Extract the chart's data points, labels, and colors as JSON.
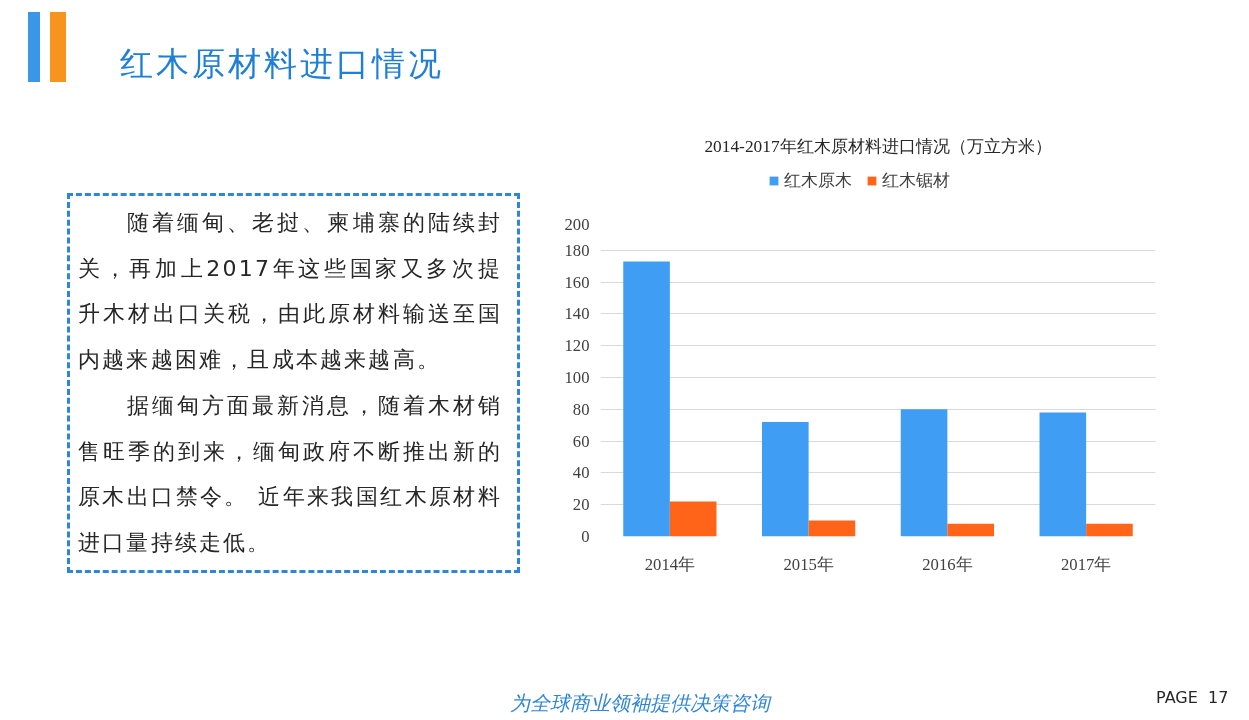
{
  "chart_data": {
    "type": "bar",
    "title": "2014-2017年红木原材料进口情况（万立方米）",
    "categories": [
      "2014年",
      "2015年",
      "2016年",
      "2017年"
    ],
    "series": [
      {
        "name": "红木原木",
        "color": "#3f9ef4",
        "values": [
          173,
          72,
          80,
          78
        ]
      },
      {
        "name": "红木锯材",
        "color": "#ff6419",
        "values": [
          22,
          10,
          8,
          8
        ]
      }
    ],
    "ylim": [
      0,
      200
    ],
    "yticks": [
      0,
      20,
      40,
      60,
      80,
      100,
      120,
      140,
      160,
      180,
      200
    ],
    "grid": "y",
    "legend": "top",
    "annotations": [
      "红木原材料进口情况",
      "随着缅甸、老挝、柬埔寨的陆续封关，再加上2017年这些国家又多次提升木材出口关税，由此原材料输送至国内越来越困难，且成本越来越高。",
      "据缅甸方面最新消息，随着木材销售旺季的到来，缅甸政府不断推出新的原木出口禁令。 近年来我国红木原材料进口量持续走低。",
      "为全球商业领袖提供决策咨询",
      "PAGE  17"
    ]
  }
}
